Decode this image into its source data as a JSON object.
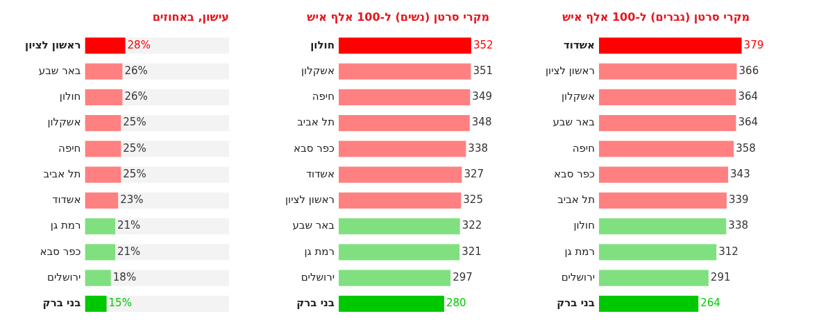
{
  "chart_data": [
    {
      "type": "bar",
      "orientation": "horizontal",
      "title": "עישון, באחוזים",
      "categories": [
        "ראשון לציון",
        "באר שבע",
        "חולון",
        "אשקלון",
        "חיפה",
        "תל אביב",
        "אשדוד",
        "רמת גן",
        "כפר סבא",
        "ירושלים",
        "בני ברק"
      ],
      "values": [
        28,
        26,
        26,
        25,
        25,
        25,
        23,
        21,
        21,
        18,
        15
      ],
      "colors": [
        "#ff0000",
        "#ff8080",
        "#ff8080",
        "#ff8080",
        "#ff8080",
        "#ff8080",
        "#ff8080",
        "#80e080",
        "#80e080",
        "#80e080",
        "#00c800"
      ],
      "value_labels": [
        "28%",
        "26%",
        "26%",
        "25%",
        "25%",
        "25%",
        "23%",
        "21%",
        "21%",
        "18%",
        "15%"
      ],
      "xlim": [
        0,
        100
      ],
      "bands": [
        {
          "axis": "x",
          "from": 0,
          "to": 100,
          "color": "#f3f3f3"
        }
      ],
      "grid": false,
      "legend": false
    },
    {
      "type": "bar",
      "orientation": "horizontal",
      "title": "מקרי סרטן (נשים) ל-100 אלף איש",
      "categories": [
        "חולון",
        "אשקלון",
        "חיפה",
        "תל אביב",
        "כפר סבא",
        "אשדוד",
        "ראשון לציון",
        "באר שבע",
        "רמת גן",
        "ירושלים",
        "בני ברק"
      ],
      "values": [
        352,
        351,
        349,
        348,
        338,
        327,
        325,
        322,
        321,
        297,
        280
      ],
      "colors": [
        "#ff0000",
        "#ff8080",
        "#ff8080",
        "#ff8080",
        "#ff8080",
        "#ff8080",
        "#ff8080",
        "#80e080",
        "#80e080",
        "#80e080",
        "#00c800"
      ],
      "data_labels": true,
      "grid": false,
      "legend": false
    },
    {
      "type": "bar",
      "orientation": "horizontal",
      "title": "מקרי סרטן (גברים) ל-100 אלף איש",
      "categories": [
        "אשדוד",
        "ראשון לציון",
        "אשקלון",
        "באר שבע",
        "חיפה",
        "כפר סבא",
        "תל אביב",
        "חולון",
        "רמת גן",
        "ירושלים",
        "בני ברק"
      ],
      "values": [
        379,
        366,
        364,
        364,
        358,
        343,
        339,
        338,
        312,
        291,
        264
      ],
      "colors": [
        "#ff0000",
        "#ff8080",
        "#ff8080",
        "#ff8080",
        "#ff8080",
        "#ff8080",
        "#ff8080",
        "#80e080",
        "#80e080",
        "#80e080",
        "#00c800"
      ],
      "data_labels": true,
      "grid": false,
      "legend": false
    }
  ]
}
